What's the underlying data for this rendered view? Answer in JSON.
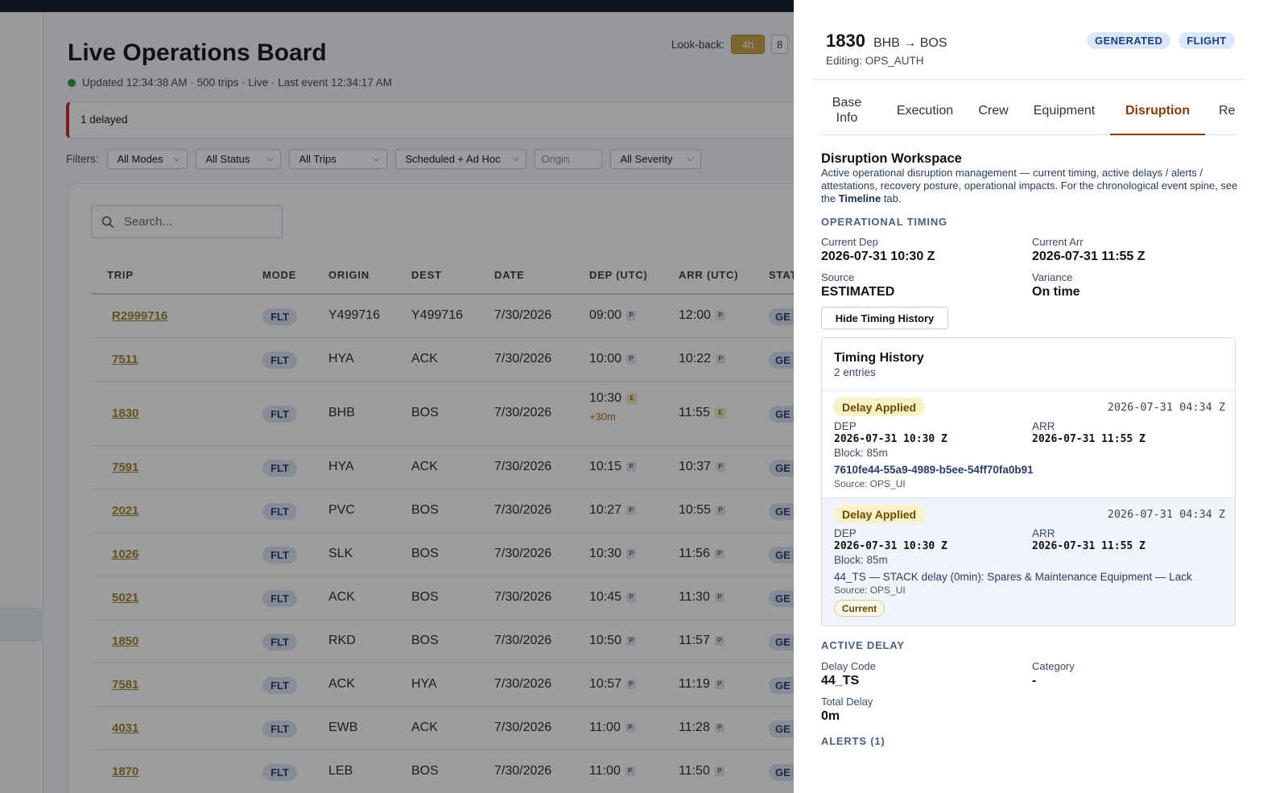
{
  "board": {
    "title": "Live Operations Board",
    "updated": "Updated 12:34:38 AM · 500 trips · Live · Last event 12:34:17 AM",
    "lookback_label": "Look-back:",
    "lookback_options": [
      "4h",
      "8"
    ],
    "alert": "1 delayed",
    "filters_label": "Filters:",
    "filters": [
      "All Modes",
      "All Status",
      "All Trips",
      "Scheduled + Ad Hoc",
      "All Severity"
    ],
    "origin_placeholder": "Origin",
    "search_placeholder": "Search...",
    "columns": [
      "TRIP",
      "MODE",
      "ORIGIN",
      "DEST",
      "DATE",
      "DEP (UTC)",
      "ARR (UTC)",
      "STAT"
    ],
    "rows": [
      {
        "trip": "R2999716",
        "mode": "FLT",
        "origin": "Y499716",
        "dest": "Y499716",
        "date": "7/30/2026",
        "dep": "09:00",
        "dep_flag": "P",
        "dep_delta": "",
        "arr": "12:00",
        "arr_flag": "P",
        "status": "GE"
      },
      {
        "trip": "7511",
        "mode": "FLT",
        "origin": "HYA",
        "dest": "ACK",
        "date": "7/30/2026",
        "dep": "10:00",
        "dep_flag": "P",
        "dep_delta": "",
        "arr": "10:22",
        "arr_flag": "P",
        "status": "GE"
      },
      {
        "trip": "1830",
        "mode": "FLT",
        "origin": "BHB",
        "dest": "BOS",
        "date": "7/30/2026",
        "dep": "10:30",
        "dep_flag": "E",
        "dep_delta": "+30m",
        "arr": "11:55",
        "arr_flag": "E",
        "status": "GE"
      },
      {
        "trip": "7591",
        "mode": "FLT",
        "origin": "HYA",
        "dest": "ACK",
        "date": "7/30/2026",
        "dep": "10:15",
        "dep_flag": "P",
        "dep_delta": "",
        "arr": "10:37",
        "arr_flag": "P",
        "status": "GE"
      },
      {
        "trip": "2021",
        "mode": "FLT",
        "origin": "PVC",
        "dest": "BOS",
        "date": "7/30/2026",
        "dep": "10:27",
        "dep_flag": "P",
        "dep_delta": "",
        "arr": "10:55",
        "arr_flag": "P",
        "status": "GE"
      },
      {
        "trip": "1026",
        "mode": "FLT",
        "origin": "SLK",
        "dest": "BOS",
        "date": "7/30/2026",
        "dep": "10:30",
        "dep_flag": "P",
        "dep_delta": "",
        "arr": "11:56",
        "arr_flag": "P",
        "status": "GE"
      },
      {
        "trip": "5021",
        "mode": "FLT",
        "origin": "ACK",
        "dest": "BOS",
        "date": "7/30/2026",
        "dep": "10:45",
        "dep_flag": "P",
        "dep_delta": "",
        "arr": "11:30",
        "arr_flag": "P",
        "status": "GE"
      },
      {
        "trip": "1850",
        "mode": "FLT",
        "origin": "RKD",
        "dest": "BOS",
        "date": "7/30/2026",
        "dep": "10:50",
        "dep_flag": "P",
        "dep_delta": "",
        "arr": "11:57",
        "arr_flag": "P",
        "status": "GE"
      },
      {
        "trip": "7581",
        "mode": "FLT",
        "origin": "ACK",
        "dest": "HYA",
        "date": "7/30/2026",
        "dep": "10:57",
        "dep_flag": "P",
        "dep_delta": "",
        "arr": "11:19",
        "arr_flag": "P",
        "status": "GE"
      },
      {
        "trip": "4031",
        "mode": "FLT",
        "origin": "EWB",
        "dest": "ACK",
        "date": "7/30/2026",
        "dep": "11:00",
        "dep_flag": "P",
        "dep_delta": "",
        "arr": "11:28",
        "arr_flag": "P",
        "status": "GE"
      },
      {
        "trip": "1870",
        "mode": "FLT",
        "origin": "LEB",
        "dest": "BOS",
        "date": "7/30/2026",
        "dep": "11:00",
        "dep_flag": "P",
        "dep_delta": "",
        "arr": "11:50",
        "arr_flag": "P",
        "status": "GE"
      }
    ]
  },
  "panel": {
    "trip": "1830",
    "route": "BHB → BOS",
    "editing": "Editing: OPS_AUTH",
    "badges": [
      "GENERATED",
      "FLIGHT"
    ],
    "tabs": {
      "base_1": "Base",
      "base_2": "Info",
      "execution": "Execution",
      "crew": "Crew",
      "equipment": "Equipment",
      "disruption": "Disruption",
      "re": "Re"
    },
    "workspace_title": "Disruption Workspace",
    "workspace_desc_1": "Active operational disruption management — current timing, active delays / alerts / attestations, recovery posture, operational impacts. For the chronological event spine, see the ",
    "workspace_desc_link": "Timeline",
    "workspace_desc_2": " tab.",
    "timing": {
      "heading": "OPERATIONAL TIMING",
      "current_dep_label": "Current Dep",
      "current_dep": "2026-07-31 10:30 Z",
      "current_arr_label": "Current Arr",
      "current_arr": "2026-07-31 11:55 Z",
      "source_label": "Source",
      "source": "ESTIMATED",
      "variance_label": "Variance",
      "variance": "On time",
      "hide_button": "Hide Timing History"
    },
    "history": {
      "title": "Timing History",
      "count": "2 entries",
      "entries": [
        {
          "chip": "Delay Applied",
          "ts": "2026-07-31 04:34 Z",
          "dep_label": "DEP",
          "dep": "2026-07-31 10:30 Z",
          "arr_label": "ARR",
          "arr": "2026-07-31 11:55 Z",
          "block": "Block: 85m",
          "note": "7610fe44-55a9-4989-b5ee-54ff70fa0b91",
          "source": "Source: OPS_UI",
          "current": ""
        },
        {
          "chip": "Delay Applied",
          "ts": "2026-07-31 04:34 Z",
          "dep_label": "DEP",
          "dep": "2026-07-31 10:30 Z",
          "arr_label": "ARR",
          "arr": "2026-07-31 11:55 Z",
          "block": "Block: 85m",
          "note": "44_TS — STACK delay (0min): Spares & Maintenance Equipment — Lack",
          "source": "Source: OPS_UI",
          "current": "Current"
        }
      ]
    },
    "active_delay": {
      "heading": "ACTIVE DELAY",
      "code_label": "Delay Code",
      "code": "44_TS",
      "category_label": "Category",
      "category": "-",
      "total_label": "Total Delay",
      "total": "0m"
    },
    "alerts_heading": "ALERTS (1)"
  }
}
